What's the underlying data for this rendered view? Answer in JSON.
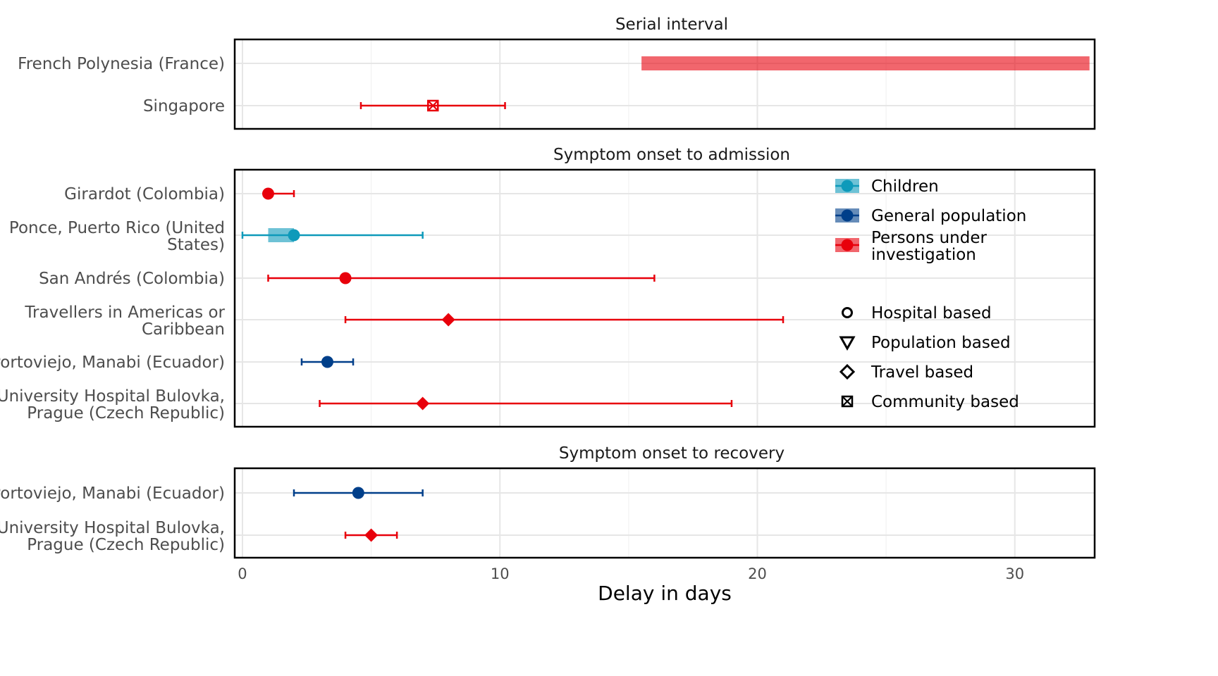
{
  "chart_data": {
    "type": "forest",
    "xlabel": "Delay in days",
    "xlim": [
      -0.3,
      33.1
    ],
    "xticks": [
      0,
      10,
      20,
      30
    ],
    "grid": true,
    "legend_position": "right, inside middle panel",
    "colors": {
      "Children": "#0e9aba",
      "General population": "#003f8a",
      "Persons under investigation": "#e8000b"
    },
    "panels": [
      {
        "title": "Serial interval",
        "rows": [
          {
            "label": [
              "French Polynesia (France)"
            ],
            "group": "Persons under investigation",
            "range_bar": [
              15.5,
              32.9
            ]
          },
          {
            "label": [
              "Singapore"
            ],
            "group": "Persons under investigation",
            "shape": "Community based",
            "point": 7.4,
            "ci": [
              4.6,
              10.2
            ]
          }
        ]
      },
      {
        "title": "Symptom onset to admission",
        "rows": [
          {
            "label": [
              "Girardot (Colombia)"
            ],
            "group": "Persons under investigation",
            "shape": "Hospital based",
            "point": 1,
            "ci": [
              1,
              2
            ]
          },
          {
            "label": [
              "Ponce, Puerto Rico (United",
              "States)"
            ],
            "group": "Children",
            "shape": "Hospital based",
            "point": 2,
            "ci": [
              0,
              7
            ],
            "range_bar": [
              1,
              2
            ]
          },
          {
            "label": [
              "San Andrés (Colombia)"
            ],
            "group": "Persons under investigation",
            "shape": "Hospital based",
            "point": 4,
            "ci": [
              1,
              16
            ]
          },
          {
            "label": [
              "Travellers in Americas or",
              "Caribbean"
            ],
            "group": "Persons under investigation",
            "shape": "Travel based",
            "point": 8,
            "ci": [
              4,
              21
            ]
          },
          {
            "label": [
              "Portoviejo, Manabi (Ecuador)"
            ],
            "group": "General population",
            "shape": "Hospital based",
            "point": 3.3,
            "ci": [
              2.3,
              4.3
            ]
          },
          {
            "label": [
              "University Hospital Bulovka,",
              "Prague (Czech Republic)"
            ],
            "group": "Persons under investigation",
            "shape": "Travel based",
            "point": 7,
            "ci": [
              3,
              19
            ]
          }
        ]
      },
      {
        "title": "Symptom onset to recovery",
        "rows": [
          {
            "label": [
              "Portoviejo, Manabi (Ecuador)"
            ],
            "group": "General population",
            "shape": "Hospital based",
            "point": 4.5,
            "ci": [
              2,
              7
            ]
          },
          {
            "label": [
              "University Hospital Bulovka,",
              "Prague (Czech Republic)"
            ],
            "group": "Persons under investigation",
            "shape": "Travel based",
            "point": 5,
            "ci": [
              4,
              6
            ]
          }
        ]
      }
    ],
    "legend_groups": [
      {
        "label": [
          "Children"
        ],
        "color": "#0e9aba"
      },
      {
        "label": [
          "General population"
        ],
        "color": "#003f8a"
      },
      {
        "label": [
          "Persons under",
          "investigation"
        ],
        "color": "#e8000b"
      }
    ],
    "legend_shapes": [
      {
        "label": "Hospital based",
        "shape": "circle"
      },
      {
        "label": "Population based",
        "shape": "triangle-down"
      },
      {
        "label": "Travel based",
        "shape": "diamond"
      },
      {
        "label": "Community based",
        "shape": "square-x"
      }
    ]
  }
}
